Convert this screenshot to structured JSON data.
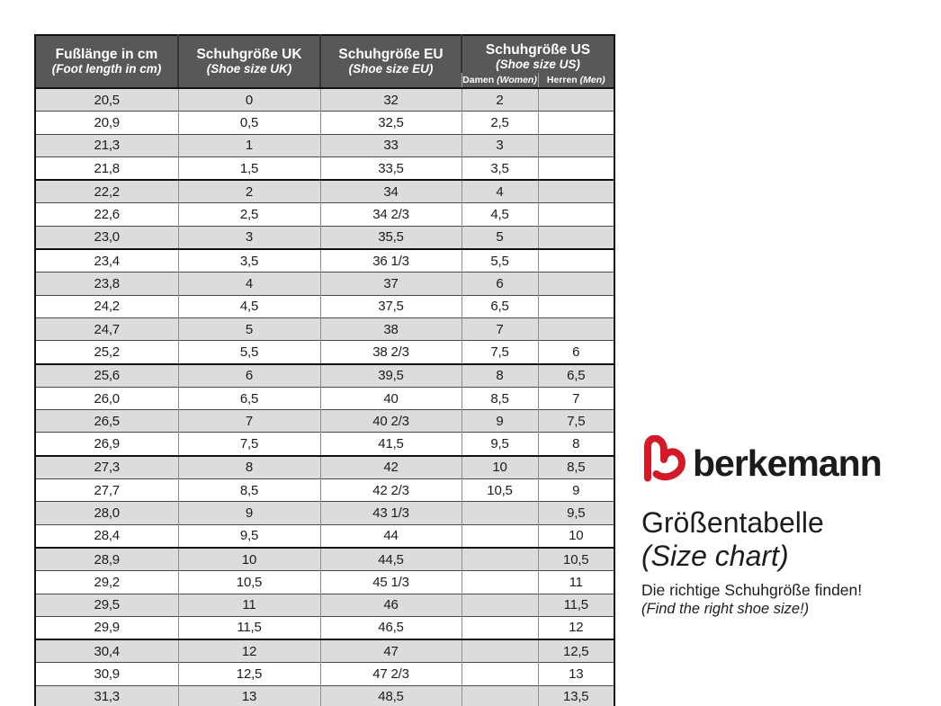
{
  "colors": {
    "header_bg": "#58585a",
    "header_text": "#ffffff",
    "row_shaded": "#dcdcdc",
    "row_plain": "#ffffff",
    "grid_dark": "#4a4a4a",
    "grid_light": "#8d8d8d",
    "outer_border": "#111111",
    "brand_red": "#d41a28",
    "text_dark": "#1d1d1b"
  },
  "table": {
    "headers": [
      {
        "line1": "Fußlänge in cm",
        "line2": "(Foot length in cm)"
      },
      {
        "line1": "Schuhgröße UK",
        "line2": "(Shoe size UK)"
      },
      {
        "line1": "Schuhgröße EU",
        "line2": "(Shoe size EU)"
      },
      {
        "line1": "Schuhgröße US",
        "line2": "(Shoe size US)"
      }
    ],
    "us_subheaders": [
      {
        "label": "Damen ",
        "label_italic": "(Women)"
      },
      {
        "label": "Herren ",
        "label_italic": "(Men)"
      }
    ],
    "rows": [
      [
        "20,5",
        "0",
        "32",
        "2",
        ""
      ],
      [
        "20,9",
        "0,5",
        "32,5",
        "2,5",
        ""
      ],
      [
        "21,3",
        "1",
        "33",
        "3",
        ""
      ],
      [
        "21,8",
        "1,5",
        "33,5",
        "3,5",
        ""
      ],
      [
        "22,2",
        "2",
        "34",
        "4",
        ""
      ],
      [
        "22,6",
        "2,5",
        "34 2/3",
        "4,5",
        ""
      ],
      [
        "23,0",
        "3",
        "35,5",
        "5",
        ""
      ],
      [
        "23,4",
        "3,5",
        "36 1/3",
        "5,5",
        ""
      ],
      [
        "23,8",
        "4",
        "37",
        "6",
        ""
      ],
      [
        "24,2",
        "4,5",
        "37,5",
        "6,5",
        ""
      ],
      [
        "24,7",
        "5",
        "38",
        "7",
        ""
      ],
      [
        "25,2",
        "5,5",
        "38 2/3",
        "7,5",
        "6"
      ],
      [
        "25,6",
        "6",
        "39,5",
        "8",
        "6,5"
      ],
      [
        "26,0",
        "6,5",
        "40",
        "8,5",
        "7"
      ],
      [
        "26,5",
        "7",
        "40 2/3",
        "9",
        "7,5"
      ],
      [
        "26,9",
        "7,5",
        "41,5",
        "9,5",
        "8"
      ],
      [
        "27,3",
        "8",
        "42",
        "10",
        "8,5"
      ],
      [
        "27,7",
        "8,5",
        "42 2/3",
        "10,5",
        "9"
      ],
      [
        "28,0",
        "9",
        "43 1/3",
        "",
        "9,5"
      ],
      [
        "28,4",
        "9,5",
        "44",
        "",
        "10"
      ],
      [
        "28,9",
        "10",
        "44,5",
        "",
        "10,5"
      ],
      [
        "29,2",
        "10,5",
        "45 1/3",
        "",
        "11"
      ],
      [
        "29,5",
        "11",
        "46",
        "",
        "11,5"
      ],
      [
        "29,9",
        "11,5",
        "46,5",
        "",
        "12"
      ],
      [
        "30,4",
        "12",
        "47",
        "",
        "12,5"
      ],
      [
        "30,9",
        "12,5",
        "47 2/3",
        "",
        "13"
      ],
      [
        "31,3",
        "13",
        "48,5",
        "",
        "13,5"
      ]
    ],
    "group_break_after_rows": [
      4,
      7,
      12,
      16,
      20,
      24
    ]
  },
  "branding": {
    "logo_text": "berkemann",
    "logo_icon": "berkemann-b-heart",
    "title_de": "Größentabelle",
    "title_en": "(Size chart)",
    "tagline_de": "Die richtige Schuhgröße finden!",
    "tagline_en": "(Find the right shoe size!)"
  }
}
